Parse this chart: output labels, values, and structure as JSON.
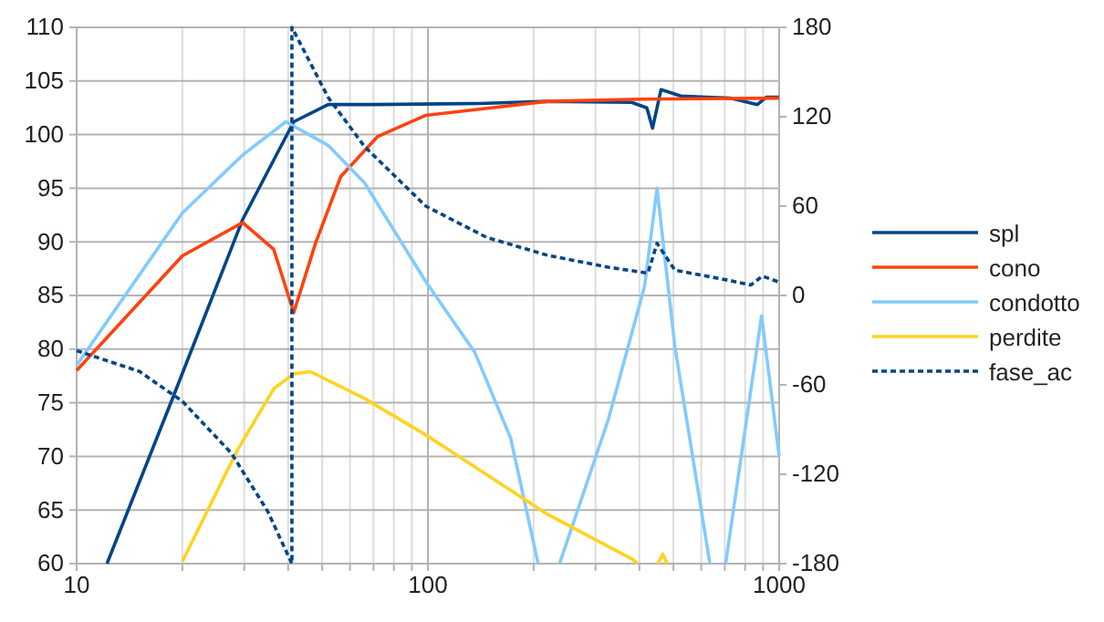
{
  "chart_data": {
    "type": "line",
    "log": "x",
    "grid": true,
    "legend": "right",
    "xlim": [
      10,
      1000
    ],
    "ylim": [
      60,
      110
    ],
    "y2lim": [
      -180,
      180
    ],
    "xticks": [
      10,
      {
        "value": 20,
        "label": null
      },
      {
        "value": 30,
        "label": null
      },
      {
        "value": 40,
        "label": null
      },
      {
        "value": 50,
        "label": null
      },
      {
        "value": 60,
        "label": null
      },
      {
        "value": 70,
        "label": null
      },
      {
        "value": 80,
        "label": null
      },
      {
        "value": 90,
        "label": null
      },
      100,
      {
        "value": 200,
        "label": null
      },
      {
        "value": 300,
        "label": null
      },
      {
        "value": 400,
        "label": null
      },
      {
        "value": 500,
        "label": null
      },
      {
        "value": 600,
        "label": null
      },
      {
        "value": 700,
        "label": null
      },
      {
        "value": 800,
        "label": null
      },
      {
        "value": 900,
        "label": null
      },
      1000
    ],
    "yticks": [
      60,
      65,
      70,
      75,
      80,
      85,
      90,
      95,
      100,
      105,
      110
    ],
    "y2ticks": [
      -180,
      -120,
      -60,
      0,
      60,
      120,
      180
    ],
    "series": [
      {
        "name": "spl",
        "color": "#004586",
        "x": [
          12.2,
          18.8,
          29.7,
          41.5,
          52,
          70,
          140,
          219,
          380,
          420,
          436,
          461,
          525,
          725,
          867,
          920,
          1000
        ],
        "values": [
          60,
          75.5,
          92.1,
          101.2,
          102.8,
          102.8,
          102.9,
          103.1,
          103,
          102.5,
          100.6,
          104.2,
          103.6,
          103.4,
          102.8,
          103.5,
          103.5
        ]
      },
      {
        "name": "cono",
        "color": "#ff420e",
        "x": [
          10,
          20,
          29.7,
          36.4,
          41.5,
          47.9,
          56.5,
          71.8,
          98.6,
          219,
          400,
          1000
        ],
        "values": [
          78,
          88.7,
          91.8,
          89.3,
          83.4,
          89.9,
          96.1,
          99.8,
          101.8,
          103.1,
          103.3,
          103.4
        ]
      },
      {
        "name": "condotto",
        "color": "#83caff",
        "x": [
          10,
          20,
          29.7,
          39.4,
          52,
          66,
          98.6,
          136,
          172,
          206,
          206.5,
          237,
          326,
          414,
          449,
          505,
          635,
          640,
          704,
          891,
          1000
        ],
        "values": [
          78.5,
          92.7,
          98.1,
          101.2,
          99,
          95.5,
          86.3,
          79.7,
          71.7,
          60,
          null,
          60,
          73.4,
          85.9,
          95,
          80.2,
          60,
          null,
          60,
          83.1,
          70
        ]
      },
      {
        "name": "perdite",
        "color": "#ffd320",
        "x": [
          20,
          28.7,
          36.4,
          41.5,
          46.3,
          66,
          98.6,
          219,
          383,
          395,
          396,
          452,
          466,
          480
        ],
        "values": [
          60.2,
          70.6,
          76.3,
          77.7,
          77.9,
          75.4,
          72,
          64.6,
          60.4,
          60,
          null,
          60,
          60.9,
          60
        ]
      },
      {
        "name": "fase_ac",
        "color": "#004586",
        "axis": "y2",
        "line_style": "dashed",
        "x": [
          10,
          15.1,
          20,
          27.6,
          35,
          41,
          41,
          52,
          66,
          98.6,
          147,
          219,
          326,
          423,
          449,
          505,
          725,
          830,
          896,
          1000
        ],
        "values": [
          -37,
          -51,
          -71,
          -106,
          -145,
          -180,
          180,
          133,
          100,
          60,
          39,
          27,
          19,
          15,
          35,
          17,
          10,
          7,
          13,
          9
        ]
      }
    ]
  }
}
